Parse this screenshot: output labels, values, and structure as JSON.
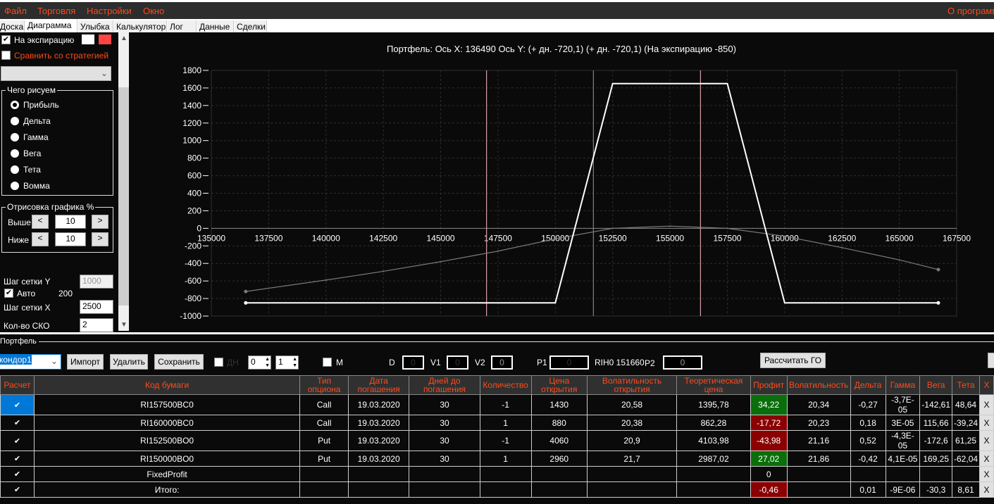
{
  "menu": {
    "items": [
      "Файл",
      "Торговля",
      "Настройки",
      "Окно"
    ],
    "about": "О программе"
  },
  "tabs": [
    "Доска",
    "Диаграмма",
    "Улыбка",
    "Калькулятор",
    "Лог",
    "Данные",
    "Сделки"
  ],
  "left": {
    "expiration_label": "На экспирацию",
    "expiration_checked": true,
    "compare_label": "Сравнить со стратегией",
    "compare_checked": false,
    "strategy_select": "",
    "draw_group": "Чего рисуем",
    "draw_options": [
      "Прибыль",
      "Дельта",
      "Гамма",
      "Вега",
      "Тета",
      "Вомма"
    ],
    "draw_selected": "Прибыль",
    "range_group": "Отрисовка графика %",
    "above_label": "Выше",
    "above_value": "10",
    "below_label": "Ниже",
    "below_value": "10",
    "dec": "<",
    "inc": ">",
    "grid_y_label": "Шаг сетки Y",
    "grid_y_value": "1000",
    "auto_label": "Авто",
    "auto_checked": true,
    "auto_value": "200",
    "grid_x_label": "Шаг сетки X",
    "grid_x_value": "2500",
    "sko_label": "Кол-во СКО",
    "sko_value": "2"
  },
  "chart_data": {
    "type": "line",
    "title": "Портфель: Ось X: 136490 Ось Y:  (+ дн. -720,1)  (+ дн. -720,1)  (На экспирацию -850)",
    "xlim": [
      135000,
      167500
    ],
    "ylim": [
      -1000,
      1800
    ],
    "xticks": [
      135000,
      137500,
      140000,
      142500,
      145000,
      147500,
      150000,
      152500,
      155000,
      157500,
      160000,
      162500,
      165000,
      167500
    ],
    "yticks": [
      1800,
      1600,
      1400,
      1200,
      1000,
      800,
      600,
      400,
      200,
      0,
      -200,
      -400,
      -600,
      -800,
      -1000
    ],
    "grid": true,
    "series": [
      {
        "color": "#ffffff",
        "x": [
          136500,
          150000,
          152500,
          157500,
          160000,
          166700
        ],
        "y": [
          -850,
          -850,
          1650,
          1650,
          -850,
          -850
        ]
      },
      {
        "color": "#7a7a7a",
        "x": [
          136500,
          140000,
          142500,
          145000,
          147500,
          150000,
          152500,
          155000,
          157500,
          160000,
          162500,
          165000,
          166700
        ],
        "y": [
          -720,
          -590,
          -490,
          -380,
          -260,
          -120,
          0,
          25,
          0,
          -90,
          -220,
          -360,
          -470
        ]
      }
    ],
    "vertical_lines": [
      {
        "x": 147000,
        "color": "#d9a0a8"
      },
      {
        "x": 151660,
        "color": "#808080"
      },
      {
        "x": 156330,
        "color": "#d9a0a8"
      }
    ]
  },
  "portfolio": {
    "label": "Портфель",
    "name": "кондор1",
    "import": "Импорт",
    "delete": "Удалить",
    "save": "Сохранить",
    "dn_label": "ДН",
    "spin1": "0",
    "spin2": "1",
    "m_label": "M",
    "d_label": "D",
    "d_value": "0",
    "v1_label": "V1",
    "v1_value": "0",
    "v2_label": "V2",
    "v2_value": "0",
    "p1_label": "P1",
    "p1_value": "0",
    "rih": "RIH0 151660",
    "p2_label": "P2",
    "p2_value": "0",
    "calc_go": "Рассчитать ГО"
  },
  "table": {
    "headers": [
      "Расчет",
      "Код бумаги",
      "Тип опциона",
      "Дата погашения",
      "Дней до погашения",
      "Количество",
      "Цена открытия",
      "Волатильность открытия",
      "Теоретическая цена",
      "Профит",
      "Волатильность",
      "Дельта",
      "Гамма",
      "Вега",
      "Тета",
      "X"
    ],
    "rows": [
      [
        "✔",
        "RI157500BC0",
        "Call",
        "19.03.2020",
        "30",
        "-1",
        "1430",
        "20,58",
        "1395,78",
        "34,22",
        "20,34",
        "-0,27",
        "-3,7E-05",
        "-142,61",
        "48,64",
        "X"
      ],
      [
        "✔",
        "RI160000BC0",
        "Call",
        "19.03.2020",
        "30",
        "1",
        "880",
        "20,38",
        "862,28",
        "-17,72",
        "20,23",
        "0,18",
        "3E-05",
        "115,66",
        "-39,24",
        "X"
      ],
      [
        "✔",
        "RI152500BO0",
        "Put",
        "19.03.2020",
        "30",
        "-1",
        "4060",
        "20,9",
        "4103,98",
        "-43,98",
        "21,16",
        "0,52",
        "-4,3E-05",
        "-172,6",
        "61,25",
        "X"
      ],
      [
        "✔",
        "RI150000BO0",
        "Put",
        "19.03.2020",
        "30",
        "1",
        "2960",
        "21,7",
        "2987,02",
        "27,02",
        "21,86",
        "-0,42",
        "4,1E-05",
        "169,25",
        "-62,04",
        "X"
      ],
      [
        "✔",
        "FixedProfit",
        "",
        "",
        "",
        "",
        "",
        "",
        "",
        "0",
        "",
        "",
        "",
        "",
        "",
        "X"
      ],
      [
        "✔",
        "Итого:",
        "",
        "",
        "",
        "",
        "",
        "",
        "",
        "-0,46",
        "",
        "0,01",
        "-9E-06",
        "-30,3",
        "8,61",
        "X"
      ]
    ]
  }
}
